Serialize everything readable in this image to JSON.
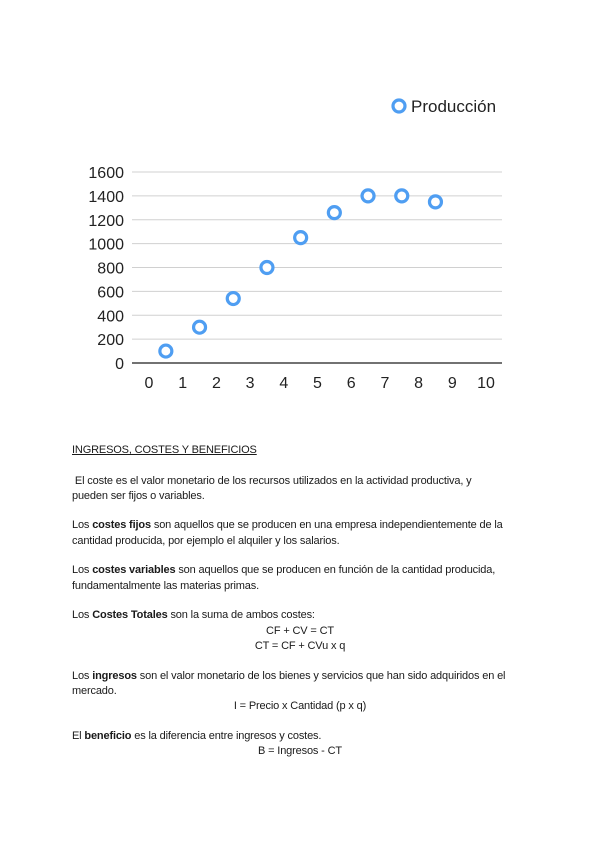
{
  "chart_data": {
    "type": "scatter",
    "legend": {
      "entries": [
        "Producción"
      ],
      "position": "top-right"
    },
    "series": [
      {
        "name": "Producción",
        "color": "#4f9ef2",
        "x": [
          0.5,
          1.5,
          2.5,
          3.5,
          4.5,
          5.5,
          6.5,
          7.5,
          8.5
        ],
        "y": [
          100,
          300,
          540,
          800,
          1050,
          1260,
          1400,
          1400,
          1350
        ]
      }
    ],
    "xlim": [
      0,
      10
    ],
    "ylim": [
      0,
      1600
    ],
    "x_ticks": [
      "0",
      "1",
      "2",
      "3",
      "4",
      "5",
      "6",
      "7",
      "8",
      "9",
      "10"
    ],
    "y_ticks": [
      "0",
      "200",
      "400",
      "600",
      "800",
      "1000",
      "1200",
      "1400",
      "1600"
    ],
    "grid": "horizontal"
  },
  "document": {
    "heading": "INGRESOS, COSTES Y BENEFICIOS",
    "lines": [
      {
        "align": "left",
        "segments": [
          {
            "t": " El coste es el valor monetario de los recursos utilizados en la actividad productiva, y"
          }
        ]
      },
      {
        "align": "left",
        "segments": [
          {
            "t": "pueden ser fijos o variables."
          }
        ]
      },
      {
        "align": "left",
        "segments": [
          {
            "t": "Los "
          },
          {
            "t": "costes fijos",
            "b": true
          },
          {
            "t": " son aquellos que se producen en una empresa independientemente de la"
          }
        ]
      },
      {
        "align": "left",
        "segments": [
          {
            "t": "cantidad producida, por ejemplo el alquiler y los salarios."
          }
        ]
      },
      {
        "align": "left",
        "segments": [
          {
            "t": "Los "
          },
          {
            "t": "costes variables",
            "b": true
          },
          {
            "t": " son aquellos que se producen en función de la cantidad producida,"
          }
        ]
      },
      {
        "align": "left",
        "segments": [
          {
            "t": "fundamentalmente las materias primas."
          }
        ]
      },
      {
        "align": "left",
        "segments": [
          {
            "t": "Los "
          },
          {
            "t": "Costes Totales",
            "b": true
          },
          {
            "t": " son la suma de ambos costes:"
          }
        ]
      },
      {
        "align": "center",
        "segments": [
          {
            "t": "CF + CV = CT"
          }
        ]
      },
      {
        "align": "center",
        "segments": [
          {
            "t": "CT = CF + CVu x q"
          }
        ]
      },
      {
        "align": "left",
        "segments": [
          {
            "t": "Los "
          },
          {
            "t": "ingresos",
            "b": true
          },
          {
            "t": " son el valor monetario de los bienes y servicios que han sido adquiridos en el"
          }
        ]
      },
      {
        "align": "left",
        "segments": [
          {
            "t": "mercado."
          }
        ]
      },
      {
        "align": "center",
        "segments": [
          {
            "t": "I = Precio x Cantidad (p x q)"
          }
        ]
      },
      {
        "align": "left",
        "segments": [
          {
            "t": "El "
          },
          {
            "t": "beneficio",
            "b": true
          },
          {
            "t": " es la diferencia entre ingresos y costes."
          }
        ]
      },
      {
        "align": "center",
        "segments": [
          {
            "t": "B = Ingresos - CT"
          }
        ]
      }
    ]
  }
}
